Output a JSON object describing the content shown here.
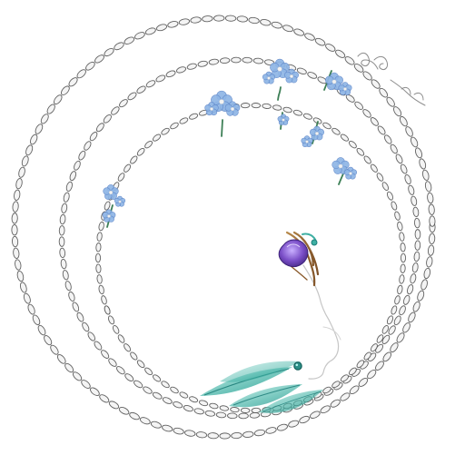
{
  "artwork": {
    "subject": "illustration",
    "palette": {
      "background": "#ffffff",
      "chain_outline": "#5a5a5a",
      "chain_fill": "#f4f4f4",
      "flower_blue": "#8fb6e6",
      "flower_blue_dark": "#5f86c8",
      "flower_center": "#f2f2f2",
      "stem_green": "#3d7f56",
      "leaf_teal": "#3fb0a3",
      "leaf_teal_dark": "#1d7e79",
      "amethyst": "#7a4ec7",
      "gold": "#c38a3a",
      "brown_line": "#8a5a2b",
      "face_line": "#bfbfbf",
      "script_ink": "#666666"
    },
    "icons": {
      "flower": "forget-me-not-icon",
      "leaf": "leaf-icon",
      "gem": "amethyst-gem-icon"
    }
  }
}
